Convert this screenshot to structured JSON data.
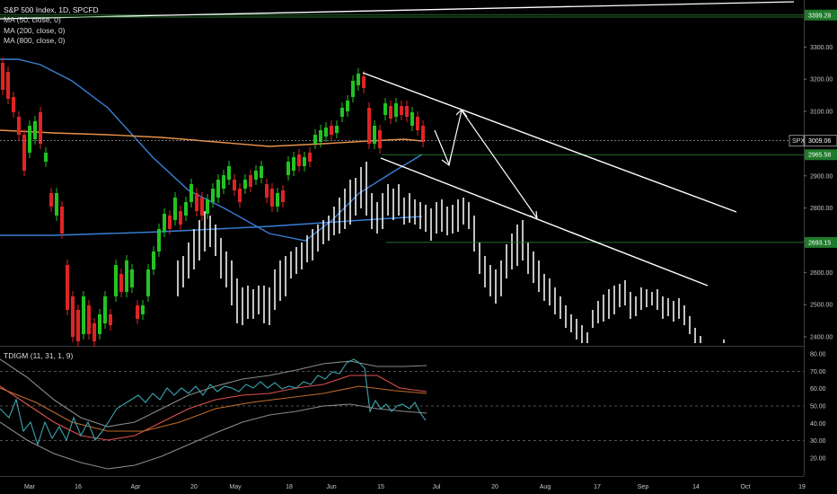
{
  "header": {
    "title": "S&P 500 Index, 1D, SPCFD",
    "indicators": [
      "MA (50, close, 0)",
      "MA (200, close, 0)",
      "MA (800, close, 0)"
    ],
    "oscillator": "TDIGM (11, 31, 1, 9)"
  },
  "colors": {
    "background": "#000000",
    "up": "#22c422",
    "down": "#e02424",
    "ma50": "#3a7fd6",
    "ma200": "#e8924a",
    "ma800": "#3a7fd6",
    "projection": "#ffffff",
    "level_line": "#2f8f3a",
    "grid": "#3a3a3a"
  },
  "chart_data": [
    {
      "type": "candlestick",
      "symbol": "SPX",
      "x_ticks": [
        "Mar",
        "16",
        "Apr",
        "20",
        "May",
        "18",
        "Jun",
        "15",
        "Jul",
        "20",
        "Aug",
        "17",
        "Sep",
        "14",
        "Oct",
        "19"
      ],
      "y_ticks": [
        2400,
        2500,
        2600,
        2700,
        2800,
        2900,
        3000,
        3100,
        3200,
        3300
      ],
      "ylim": [
        2385,
        3420
      ],
      "price_labels": [
        {
          "value": "3399.28",
          "level": 3399.28,
          "style": "green"
        },
        {
          "value": "3009.06",
          "level": 3009.06,
          "style": "current",
          "symbol": "SPX"
        },
        {
          "value": "2965.58",
          "level": 2965.58,
          "style": "green"
        },
        {
          "value": "2693.15",
          "level": 2693.15,
          "style": "green"
        }
      ],
      "candles_approx": [
        {
          "date": "Mar 2",
          "o": 3060,
          "c": 3100
        },
        {
          "date": "Mar 9",
          "o": 2860,
          "c": 2740
        },
        {
          "date": "Mar 16",
          "o": 2480,
          "c": 2410
        },
        {
          "date": "Mar 23",
          "o": 2240,
          "c": 2480
        },
        {
          "date": "Apr 6",
          "o": 2580,
          "c": 2660
        },
        {
          "date": "Apr 20",
          "o": 2840,
          "c": 2800
        },
        {
          "date": "May 4",
          "o": 2810,
          "c": 2840
        },
        {
          "date": "May 18",
          "o": 2900,
          "c": 2940
        },
        {
          "date": "Jun 1",
          "o": 3060,
          "c": 3100
        },
        {
          "date": "Jun 8",
          "o": 3210,
          "c": 3230
        },
        {
          "date": "Jun 11",
          "o": 3150,
          "c": 3000
        },
        {
          "date": "Jun 15",
          "o": 2980,
          "c": 3060
        },
        {
          "date": "Jun 26",
          "o": 3060,
          "c": 3009
        }
      ],
      "analog_projection_approx": [
        {
          "date": "Jun 15",
          "high": 2920,
          "low": 2760
        },
        {
          "date": "Jul 1",
          "high": 2880,
          "low": 2700
        },
        {
          "date": "Jul 20",
          "high": 2800,
          "low": 2650
        },
        {
          "date": "Aug 1",
          "high": 2600,
          "low": 2480
        },
        {
          "date": "Aug 10",
          "high": 2540,
          "low": 2420
        },
        {
          "date": "Sep 1",
          "high": 2580,
          "low": 2470
        },
        {
          "date": "Sep 14",
          "high": 2510,
          "low": 2400
        }
      ],
      "series": [
        {
          "name": "MA (50, close, 0)",
          "values_approx": [
            3280,
            3260,
            3050,
            2830,
            2720,
            2700,
            2850,
            2930,
            2990
          ]
        },
        {
          "name": "MA (200, close, 0)",
          "values_approx": [
            3010,
            3010,
            3000,
            2995,
            2985,
            2985,
            2990,
            3010
          ]
        },
        {
          "name": "MA (800, close, 0)",
          "values_approx": [
            2720,
            2730,
            2740,
            2750,
            2760,
            2780,
            2790
          ]
        }
      ]
    },
    {
      "type": "line",
      "title": "TDIGM (11, 31, 1, 9)",
      "y_ticks": [
        20,
        30,
        40,
        50,
        60,
        70,
        80
      ],
      "ylim": [
        13,
        86
      ],
      "levels": [
        30,
        50,
        70
      ]
    }
  ]
}
